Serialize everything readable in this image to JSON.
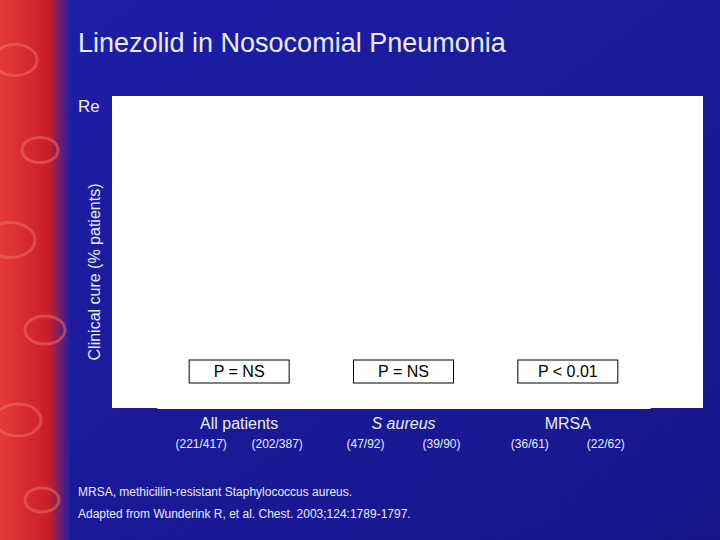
{
  "chart_data": {
    "type": "bar",
    "title": "Linezolid in Nosocomial Pneumonia",
    "subtitle": "Re",
    "y_label": "Clinical cure (% patients)",
    "categories": [
      "All patients",
      "S aureus",
      "MRSA"
    ],
    "counts": [
      [
        "(221/417)",
        "(202/387)"
      ],
      [
        "(47/92)",
        "(39/90)"
      ],
      [
        "(36/61)",
        "(22/62)"
      ]
    ],
    "annotations": [
      "P = NS",
      "P = NS",
      "P < 0.01"
    ],
    "tick_labels": "x",
    "grid": false,
    "footnotes": [
      "MRSA, methicillin-resistant Staphylococcus aureus.",
      "Adapted from Wunderink R, et al. Chest. 2003;124:1789-1797."
    ]
  }
}
